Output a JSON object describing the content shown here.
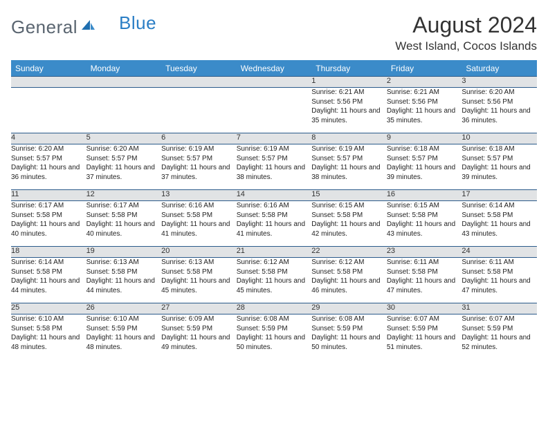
{
  "logo": {
    "word1": "General",
    "word2": "Blue"
  },
  "title": "August 2024",
  "location": "West Island, Cocos Islands",
  "colors": {
    "header_bg": "#3b8bc9",
    "header_text": "#ffffff",
    "daynum_bg": "#e1e3e5",
    "row_border": "#2a5a8a",
    "logo_gray": "#5a6570",
    "logo_blue": "#2a7ec5"
  },
  "day_headers": [
    "Sunday",
    "Monday",
    "Tuesday",
    "Wednesday",
    "Thursday",
    "Friday",
    "Saturday"
  ],
  "weeks": [
    {
      "nums": [
        "",
        "",
        "",
        "",
        "1",
        "2",
        "3"
      ],
      "cells": [
        null,
        null,
        null,
        null,
        {
          "sunrise": "6:21 AM",
          "sunset": "5:56 PM",
          "daylight": "11 hours and 35 minutes."
        },
        {
          "sunrise": "6:21 AM",
          "sunset": "5:56 PM",
          "daylight": "11 hours and 35 minutes."
        },
        {
          "sunrise": "6:20 AM",
          "sunset": "5:56 PM",
          "daylight": "11 hours and 36 minutes."
        }
      ]
    },
    {
      "nums": [
        "4",
        "5",
        "6",
        "7",
        "8",
        "9",
        "10"
      ],
      "cells": [
        {
          "sunrise": "6:20 AM",
          "sunset": "5:57 PM",
          "daylight": "11 hours and 36 minutes."
        },
        {
          "sunrise": "6:20 AM",
          "sunset": "5:57 PM",
          "daylight": "11 hours and 37 minutes."
        },
        {
          "sunrise": "6:19 AM",
          "sunset": "5:57 PM",
          "daylight": "11 hours and 37 minutes."
        },
        {
          "sunrise": "6:19 AM",
          "sunset": "5:57 PM",
          "daylight": "11 hours and 38 minutes."
        },
        {
          "sunrise": "6:19 AM",
          "sunset": "5:57 PM",
          "daylight": "11 hours and 38 minutes."
        },
        {
          "sunrise": "6:18 AM",
          "sunset": "5:57 PM",
          "daylight": "11 hours and 39 minutes."
        },
        {
          "sunrise": "6:18 AM",
          "sunset": "5:57 PM",
          "daylight": "11 hours and 39 minutes."
        }
      ]
    },
    {
      "nums": [
        "11",
        "12",
        "13",
        "14",
        "15",
        "16",
        "17"
      ],
      "cells": [
        {
          "sunrise": "6:17 AM",
          "sunset": "5:58 PM",
          "daylight": "11 hours and 40 minutes."
        },
        {
          "sunrise": "6:17 AM",
          "sunset": "5:58 PM",
          "daylight": "11 hours and 40 minutes."
        },
        {
          "sunrise": "6:16 AM",
          "sunset": "5:58 PM",
          "daylight": "11 hours and 41 minutes."
        },
        {
          "sunrise": "6:16 AM",
          "sunset": "5:58 PM",
          "daylight": "11 hours and 41 minutes."
        },
        {
          "sunrise": "6:15 AM",
          "sunset": "5:58 PM",
          "daylight": "11 hours and 42 minutes."
        },
        {
          "sunrise": "6:15 AM",
          "sunset": "5:58 PM",
          "daylight": "11 hours and 43 minutes."
        },
        {
          "sunrise": "6:14 AM",
          "sunset": "5:58 PM",
          "daylight": "11 hours and 43 minutes."
        }
      ]
    },
    {
      "nums": [
        "18",
        "19",
        "20",
        "21",
        "22",
        "23",
        "24"
      ],
      "cells": [
        {
          "sunrise": "6:14 AM",
          "sunset": "5:58 PM",
          "daylight": "11 hours and 44 minutes."
        },
        {
          "sunrise": "6:13 AM",
          "sunset": "5:58 PM",
          "daylight": "11 hours and 44 minutes."
        },
        {
          "sunrise": "6:13 AM",
          "sunset": "5:58 PM",
          "daylight": "11 hours and 45 minutes."
        },
        {
          "sunrise": "6:12 AM",
          "sunset": "5:58 PM",
          "daylight": "11 hours and 45 minutes."
        },
        {
          "sunrise": "6:12 AM",
          "sunset": "5:58 PM",
          "daylight": "11 hours and 46 minutes."
        },
        {
          "sunrise": "6:11 AM",
          "sunset": "5:58 PM",
          "daylight": "11 hours and 47 minutes."
        },
        {
          "sunrise": "6:11 AM",
          "sunset": "5:58 PM",
          "daylight": "11 hours and 47 minutes."
        }
      ]
    },
    {
      "nums": [
        "25",
        "26",
        "27",
        "28",
        "29",
        "30",
        "31"
      ],
      "cells": [
        {
          "sunrise": "6:10 AM",
          "sunset": "5:58 PM",
          "daylight": "11 hours and 48 minutes."
        },
        {
          "sunrise": "6:10 AM",
          "sunset": "5:59 PM",
          "daylight": "11 hours and 48 minutes."
        },
        {
          "sunrise": "6:09 AM",
          "sunset": "5:59 PM",
          "daylight": "11 hours and 49 minutes."
        },
        {
          "sunrise": "6:08 AM",
          "sunset": "5:59 PM",
          "daylight": "11 hours and 50 minutes."
        },
        {
          "sunrise": "6:08 AM",
          "sunset": "5:59 PM",
          "daylight": "11 hours and 50 minutes."
        },
        {
          "sunrise": "6:07 AM",
          "sunset": "5:59 PM",
          "daylight": "11 hours and 51 minutes."
        },
        {
          "sunrise": "6:07 AM",
          "sunset": "5:59 PM",
          "daylight": "11 hours and 52 minutes."
        }
      ]
    }
  ],
  "labels": {
    "sunrise": "Sunrise:",
    "sunset": "Sunset:",
    "daylight": "Daylight:"
  }
}
